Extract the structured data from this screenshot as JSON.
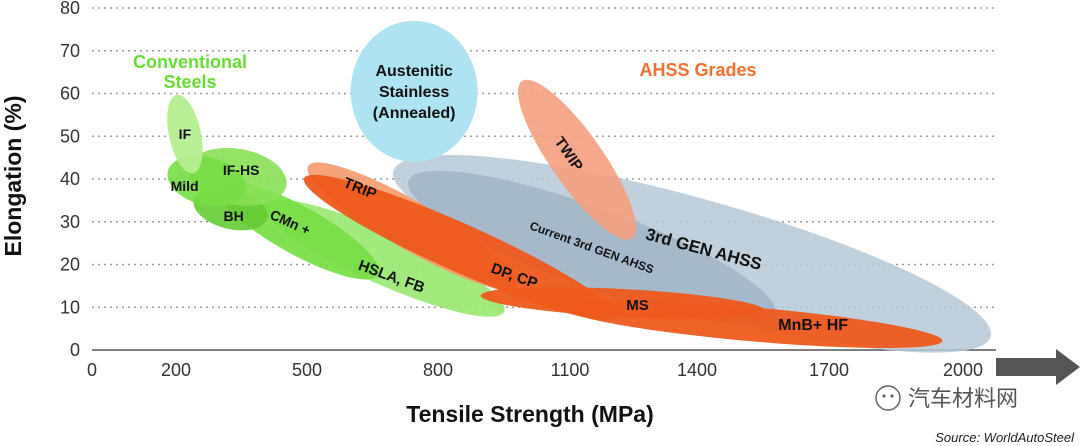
{
  "chart_data": {
    "type": "scatter",
    "xlabel": "Tensile Strength (MPa)",
    "ylabel": "Elongation (%)",
    "x_ticks": [
      "0",
      "200",
      "500",
      "800",
      "1100",
      "1400",
      "1700",
      "2000"
    ],
    "y_ticks": [
      "0",
      "10",
      "20",
      "30",
      "40",
      "50",
      "60",
      "70",
      "80"
    ],
    "ylim": [
      0,
      80
    ],
    "grid": "horizontal dotted",
    "groups": [
      {
        "label_lines": [
          "Conventional",
          "Steels"
        ],
        "color": "#66dd33"
      },
      {
        "label_lines": [
          "AHSS Grades"
        ],
        "color": "#f07030"
      }
    ],
    "regions": [
      {
        "label": "IF",
        "x_range": [
          180,
          260
        ],
        "y_range": [
          41,
          60
        ],
        "color": "#b5ee90"
      },
      {
        "label": "Mild",
        "x_range": [
          200,
          340
        ],
        "y_range": [
          33,
          46
        ],
        "color": "#77dd44"
      },
      {
        "label": "IF-HS",
        "x_range": [
          240,
          440
        ],
        "y_range": [
          34,
          47
        ],
        "color": "#88e055"
      },
      {
        "label": "BH",
        "x_range": [
          250,
          400
        ],
        "y_range": [
          27,
          39
        ],
        "color": "#66cc33"
      },
      {
        "label": "CMn +",
        "x_range": [
          280,
          680
        ],
        "y_range": [
          17,
          39
        ],
        "color": "#77dd44"
      },
      {
        "label": "HSLA, FB",
        "x_range": [
          400,
          950
        ],
        "y_range": [
          9,
          34
        ],
        "color": "#99e870"
      },
      {
        "label": "TRIP",
        "x_range": [
          480,
          1000
        ],
        "y_range": [
          20,
          38
        ],
        "color": "#f59a6a"
      },
      {
        "label": "DP, CP",
        "x_range": [
          470,
          1230
        ],
        "y_range": [
          11,
          37
        ],
        "color": "#ee5a1c"
      },
      {
        "label": "MS",
        "x_range": [
          890,
          1560
        ],
        "y_range": [
          8,
          14
        ],
        "color": "#ee5a1c"
      },
      {
        "label": "MnB+ HF",
        "x_range": [
          1080,
          1960
        ],
        "y_range": [
          2,
          10
        ],
        "color": "#ee5a1c"
      },
      {
        "label": "TWIP",
        "x_range": [
          930,
          1310
        ],
        "y_range": [
          23,
          66
        ],
        "color": "#f59e7e"
      },
      {
        "label": "Current 3rd GEN AHSS",
        "x_range": [
          730,
          1580
        ],
        "y_range": [
          11,
          37
        ],
        "color": "#a3b7c8"
      },
      {
        "label": "3rd GEN AHSS",
        "x_range": [
          730,
          2030
        ],
        "y_range": [
          6,
          39
        ],
        "color": "#b5c8d6"
      },
      {
        "label": "Austenitic Stainless (Annealed)",
        "label_lines": [
          "Austenitic",
          "Stainless",
          "(Annealed)"
        ],
        "x_range": [
          600,
          890
        ],
        "y_range": [
          44,
          77
        ],
        "color": "#aee3f2"
      }
    ],
    "source": "Source: WorldAutoSteel"
  },
  "watermark": "汽车材料网"
}
